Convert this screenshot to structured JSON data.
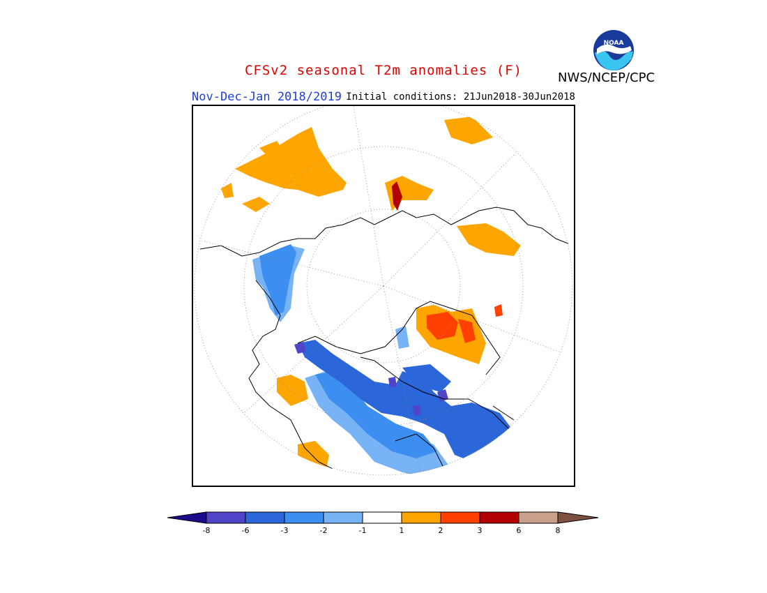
{
  "header": {
    "title": "CFSv2 seasonal T2m anomalies (F)",
    "season": "Nov-Dec-Jan 2018/2019",
    "initial_conditions": "Initial conditions: 21Jun2018-30Jun2018",
    "agency": "NWS/NCEP/CPC",
    "logo_text": "NOAA"
  },
  "map": {
    "projection": "north-polar-stereographic",
    "grid": "dotted"
  },
  "colorbar": {
    "levels": [
      "-8",
      "-6",
      "-3",
      "-2",
      "-1",
      "1",
      "2",
      "3",
      "6",
      "8"
    ],
    "colors": [
      "#1a0a8c",
      "#5045c9",
      "#2b67d9",
      "#3c8ef0",
      "#78b4f5",
      "#ffffff",
      "#ffa500",
      "#ff4000",
      "#b20000",
      "#c8a08c",
      "#7d5040"
    ]
  }
}
